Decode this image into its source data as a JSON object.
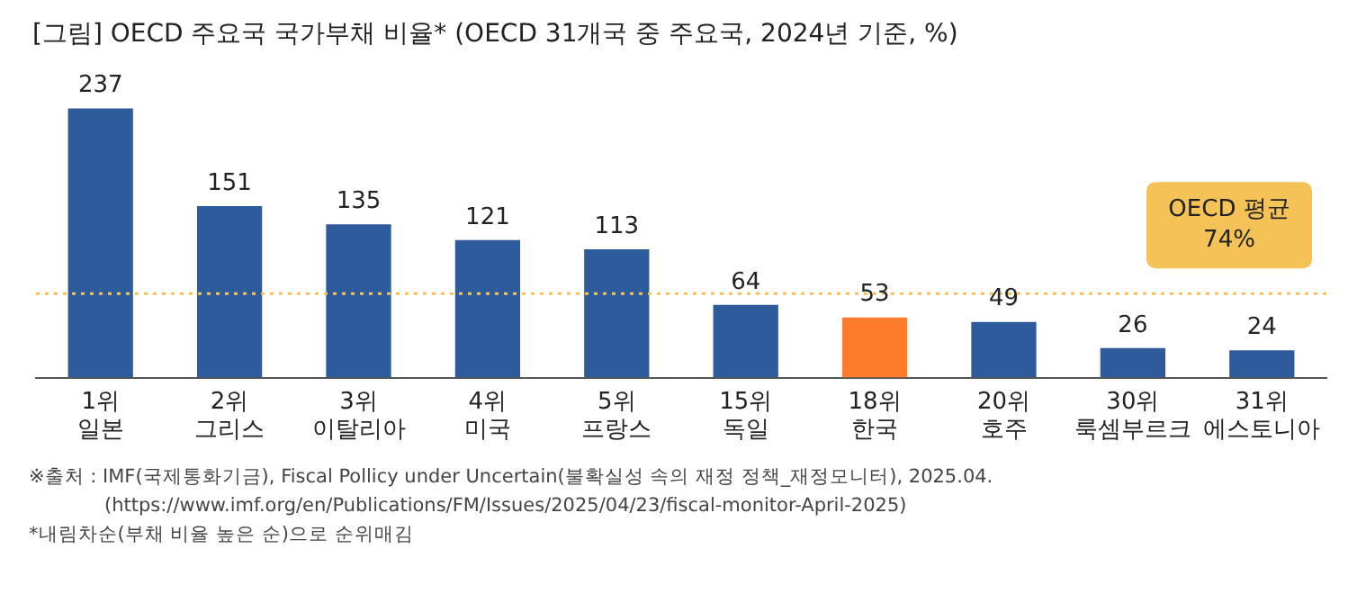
{
  "chart_data": {
    "type": "bar",
    "title": "[그림] OECD 주요국 국가부채 비율* (OECD 31개국 중 주요국, 2024년 기준, %)",
    "categories": [
      "1위\n일본",
      "2위\n그리스",
      "3위\n이탈리아",
      "4위\n미국",
      "5위\n프랑스",
      "15위\n독일",
      "18위\n한국",
      "20위\n호주",
      "30위\n룩셈부르크",
      "31위\n에스토니아"
    ],
    "values": [
      237,
      151,
      135,
      121,
      113,
      64,
      53,
      49,
      26,
      24
    ],
    "colors": [
      "#2e5b9b",
      "#2e5b9b",
      "#2e5b9b",
      "#2e5b9b",
      "#2e5b9b",
      "#2e5b9b",
      "#ff7b2c",
      "#2e5b9b",
      "#2e5b9b",
      "#2e5b9b"
    ],
    "data_labels": true,
    "relative": false,
    "grid": false,
    "legend": false,
    "ref_lines": [
      {
        "axis": "y",
        "value": 74,
        "label": "OECD 평균\n74%",
        "color": "#f5c257",
        "line_style": "dotted"
      }
    ],
    "annotations": [
      "※출처 : IMF(국제통화기금), Fiscal Pollicy under Uncertain(불확실성 속의 재정 정책_재정모니터), 2025.04.",
      "(https://www.imf.org/en/Publications/FM/Issues/2025/04/23/fiscal-monitor-April-2025)",
      "*내림차순(부채 비율 높은 순)으로 순위매김"
    ]
  }
}
